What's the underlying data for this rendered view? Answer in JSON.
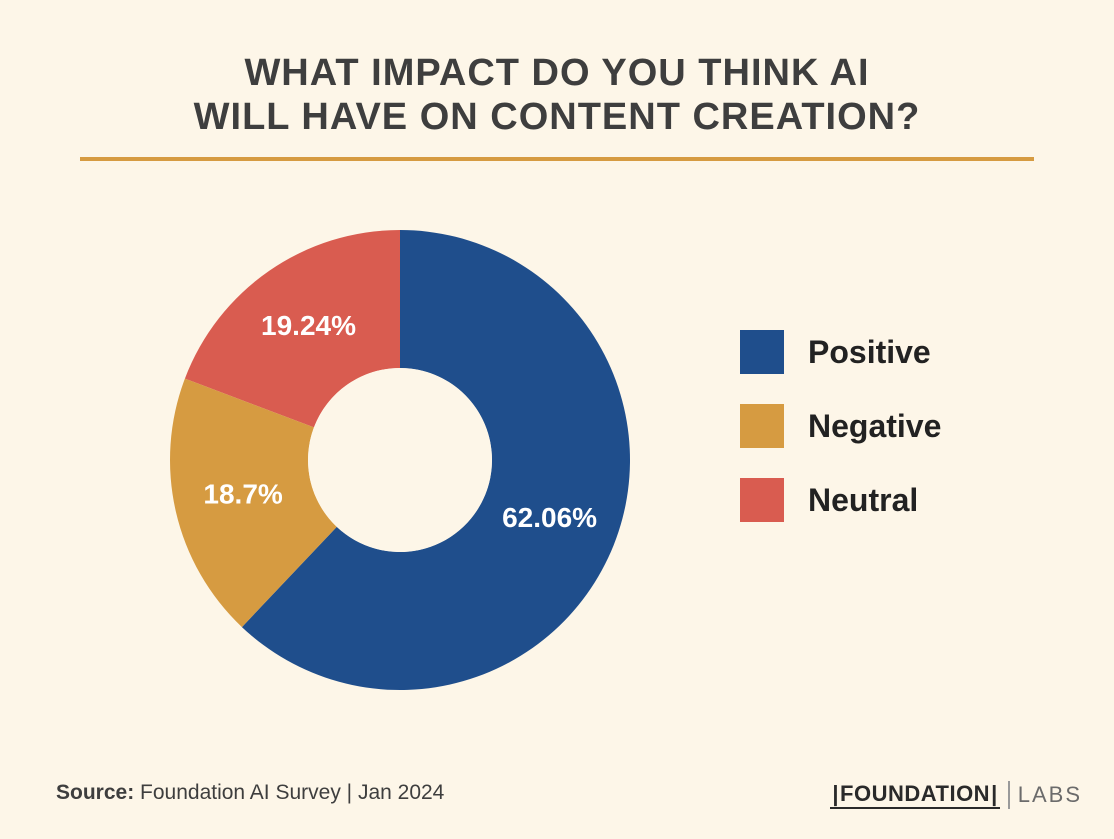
{
  "title": {
    "line1": "WHAT IMPACT DO YOU THINK AI",
    "line2": "WILL HAVE ON CONTENT CREATION?",
    "color": "#3e3e3e",
    "fontsize": 38,
    "rule_color": "#d69b41"
  },
  "chart": {
    "type": "donut",
    "inner_radius_pct": 40,
    "outer_radius_pct": 100,
    "background": "#fdf6e8",
    "label_fontsize": 28,
    "label_color": "#ffffff",
    "slices": [
      {
        "name": "Positive",
        "value": 62.06,
        "label": "62.06%",
        "color": "#1f4e8c"
      },
      {
        "name": "Negative",
        "value": 18.7,
        "label": "18.7%",
        "color": "#d69b41"
      },
      {
        "name": "Neutral",
        "value": 19.24,
        "label": "19.24%",
        "color": "#d95c50"
      }
    ],
    "legend": {
      "swatch_size": 44,
      "fontsize": 32,
      "items": [
        {
          "label": "Positive",
          "color": "#1f4e8c"
        },
        {
          "label": "Negative",
          "color": "#d69b41"
        },
        {
          "label": "Neutral",
          "color": "#d95c50"
        }
      ]
    }
  },
  "source": {
    "prefix": "Source:",
    "text": "Foundation AI Survey | Jan 2024"
  },
  "brand": {
    "name": "FOUNDATION",
    "suffix": "LABS"
  }
}
